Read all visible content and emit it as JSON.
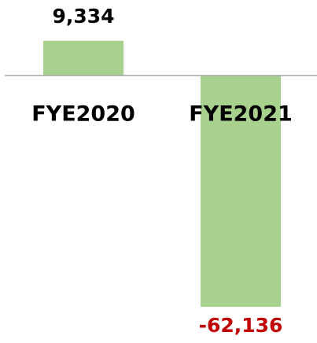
{
  "chart_data": {
    "type": "bar",
    "categories": [
      "FYE2020",
      "FYE2021"
    ],
    "values": [
      9334,
      -62136
    ],
    "value_labels": [
      "9,334",
      "-62,136"
    ],
    "color": "#a9d18e",
    "label_colors": [
      "#000000",
      "#c00000"
    ],
    "axis_color": "#a6a6a6"
  }
}
